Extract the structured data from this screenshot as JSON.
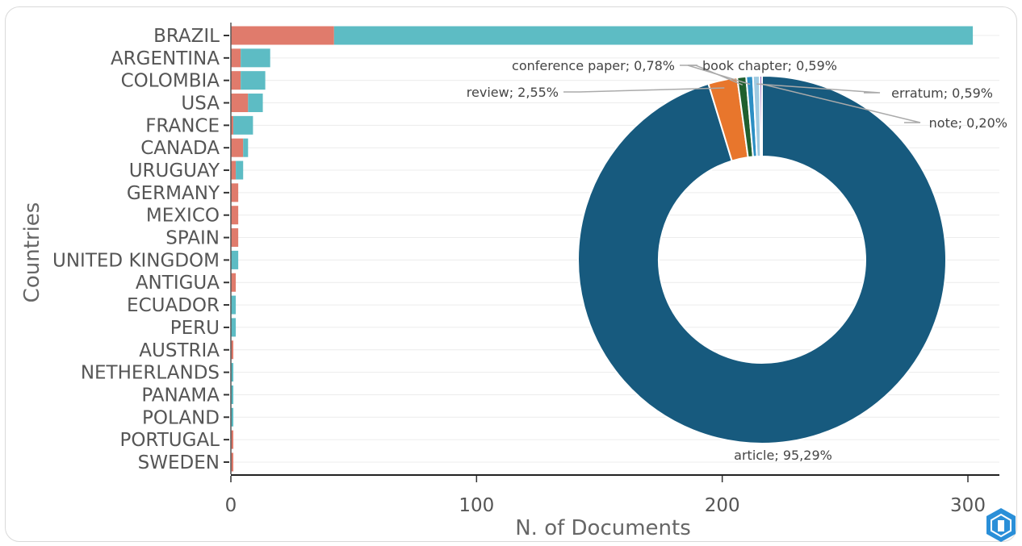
{
  "chart_data": [
    {
      "type": "bar",
      "orientation": "horizontal",
      "stacked": true,
      "categories": [
        "BRAZIL",
        "ARGENTINA",
        "COLOMBIA",
        "USA",
        "FRANCE",
        "CANADA",
        "URUGUAY",
        "GERMANY",
        "MEXICO",
        "SPAIN",
        "UNITED KINGDOM",
        "ANTIGUA",
        "ECUADOR",
        "PERU",
        "AUSTRIA",
        "NETHERLANDS",
        "PANAMA",
        "POLAND",
        "PORTUGAL",
        "SWEDEN"
      ],
      "series": [
        {
          "color": "#E07B6C",
          "values": [
            42,
            4,
            4,
            7,
            1,
            5,
            2,
            3,
            3,
            3,
            0,
            2,
            0,
            0,
            1,
            0,
            0,
            0,
            1,
            1
          ]
        },
        {
          "color": "#5DBCC4",
          "values": [
            260,
            12,
            10,
            6,
            8,
            2,
            3,
            0,
            0,
            0,
            3,
            0,
            2,
            2,
            0,
            1,
            1,
            1,
            0,
            0
          ]
        }
      ],
      "xlabel": "N. of Documents",
      "ylabel": "Countries",
      "xlim": [
        0,
        310
      ],
      "xticks": [
        0,
        100,
        200,
        300
      ],
      "grid": true
    },
    {
      "type": "pie",
      "donut": true,
      "slices": [
        {
          "label": "article; 95,29%",
          "value": 95.29,
          "color": "#175A7E"
        },
        {
          "label": "review; 2,55%",
          "value": 2.55,
          "color": "#E8762C"
        },
        {
          "label": "conference paper; 0,78%",
          "value": 0.78,
          "color": "#1F5F2E"
        },
        {
          "label": "book chapter; 0,59%",
          "value": 0.59,
          "color": "#2C8FC4"
        },
        {
          "label": "erratum; 0,59%",
          "value": 0.59,
          "color": "#9ECAE1"
        },
        {
          "label": "note; 0,20%",
          "value": 0.2,
          "color": "#7B3FA8"
        }
      ]
    }
  ]
}
